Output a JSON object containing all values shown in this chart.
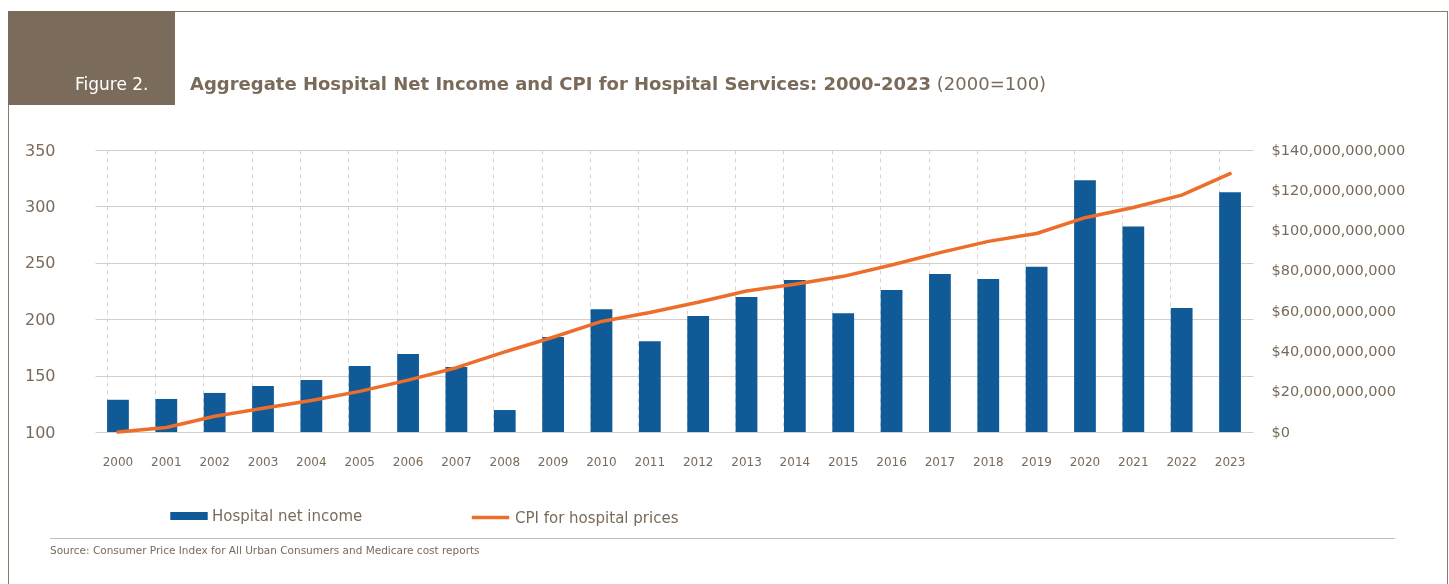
{
  "chart_data": {
    "type": "bar",
    "title": "Aggregate Hospital Net Income and CPI for Hospital Services: 2000-2023",
    "subtitle": "(2000=100)",
    "annotations": [
      "Figure 2.",
      "Source: Consumer Price Index for All Urban Consumers and Medicare cost reports"
    ],
    "categories": [
      "2000",
      "2001",
      "2002",
      "2003",
      "2004",
      "2005",
      "2006",
      "2007",
      "2008",
      "2009",
      "2010",
      "2011",
      "2012",
      "2013",
      "2014",
      "2015",
      "2016",
      "2017",
      "2018",
      "2019",
      "2020",
      "2021",
      "2022",
      "2023"
    ],
    "series": [
      {
        "name": "Hospital net income",
        "axis": "y2",
        "color": "#105a97",
        "values": [
          16000000000,
          16400000000,
          19400000000,
          22800000000,
          25800000000,
          32800000000,
          38700000000,
          32300000000,
          10900000000,
          47200000000,
          61000000000,
          45000000000,
          57600000000,
          67000000000,
          75500000000,
          59000000000,
          70500000000,
          78400000000,
          76000000000,
          82000000000,
          125000000000,
          102000000000,
          61500000000,
          119000000000
        ]
      },
      {
        "name": "CPI for hospital prices",
        "type": "line",
        "color": "#ed6d2b",
        "values": [
          100,
          104,
          114,
          121,
          128,
          136,
          146,
          157,
          171,
          184,
          198,
          206,
          215,
          225,
          231,
          238,
          248,
          259,
          269,
          276,
          290,
          299,
          310,
          329
        ]
      }
    ],
    "ylim": [
      100,
      350
    ],
    "yticks": [
      100,
      150,
      200,
      250,
      300,
      350
    ],
    "y2lim": [
      0,
      140000000000
    ],
    "y2ticks": [
      {
        "value": 0,
        "label": "$0"
      },
      {
        "value": 20000000000,
        "label": "$20,000,000,000"
      },
      {
        "value": 40000000000,
        "label": "$40,000,000,000"
      },
      {
        "value": 60000000000,
        "label": "$60,000,000,000"
      },
      {
        "value": 80000000000,
        "label": "$80,000,000,000"
      },
      {
        "value": 100000000000,
        "label": "$100,000,000,000"
      },
      {
        "value": 120000000000,
        "label": "$120,000,000,000"
      },
      {
        "value": 140000000000,
        "label": "$140,000,000,000"
      }
    ],
    "grid": true,
    "legend": "bottom"
  }
}
